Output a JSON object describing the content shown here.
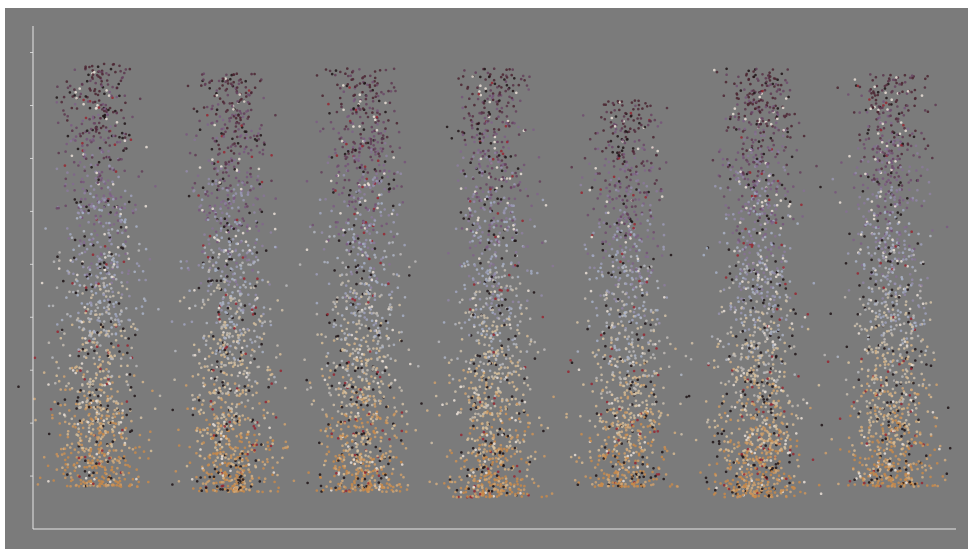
{
  "chart_data": {
    "type": "scatter",
    "title": "",
    "xlabel": "",
    "ylabel": "",
    "background_color": "#7b7b7b",
    "axis_color": "#e6e6e6",
    "grid": false,
    "legend": "none",
    "xlim": [
      0,
      7
    ],
    "ylim": [
      0,
      9.5
    ],
    "y_ticks": [
      1,
      2,
      3,
      4,
      5,
      6,
      7,
      8,
      9
    ],
    "x_tick_labels": [],
    "color_gradient_bottom_to_top": [
      "#c8894a",
      "#d9c3a0",
      "#a7b2c9",
      "#7a5a80",
      "#4a2430"
    ],
    "groups": [
      {
        "index": 1,
        "center": 0.5,
        "y_min": 0.8,
        "y_max": 8.8,
        "approx_points": 1400
      },
      {
        "index": 2,
        "center": 1.5,
        "y_min": 0.7,
        "y_max": 8.6,
        "approx_points": 1400
      },
      {
        "index": 3,
        "center": 2.5,
        "y_min": 0.7,
        "y_max": 8.7,
        "approx_points": 1400
      },
      {
        "index": 4,
        "center": 3.5,
        "y_min": 0.6,
        "y_max": 8.7,
        "approx_points": 1400
      },
      {
        "index": 5,
        "center": 4.5,
        "y_min": 0.8,
        "y_max": 8.1,
        "approx_points": 1200
      },
      {
        "index": 6,
        "center": 5.5,
        "y_min": 0.6,
        "y_max": 8.7,
        "approx_points": 1600
      },
      {
        "index": 7,
        "center": 6.5,
        "y_min": 0.8,
        "y_max": 8.6,
        "approx_points": 1400
      }
    ]
  }
}
